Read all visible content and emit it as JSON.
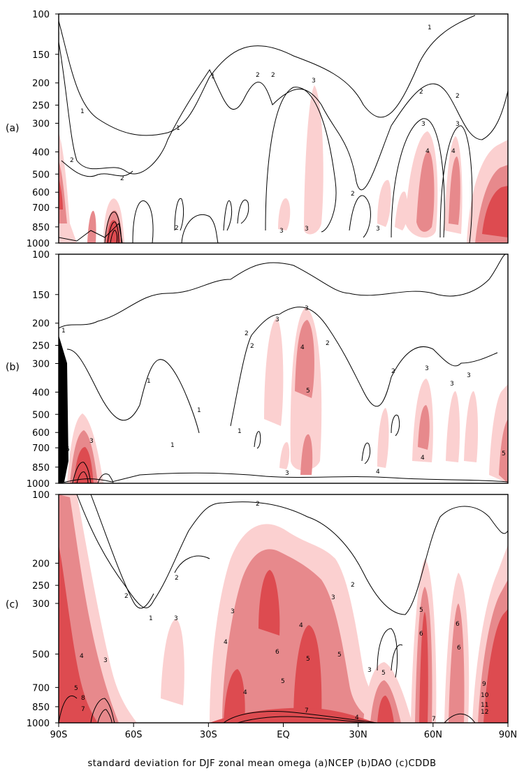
{
  "figure": {
    "caption": "standard deviation for DJF zonal mean omega (a)NCEP (b)DAO (c)CDDB"
  },
  "colors": {
    "level_1": "#fbd0d0",
    "level_2": "#e7898c",
    "level_3": "#dd4b50",
    "frame": "#000000"
  },
  "chart_data": [
    {
      "type": "contour",
      "panel_label": "(a)",
      "x_ticks": [],
      "ylabel": "",
      "y_ticks": [
        "100",
        "150",
        "200",
        "250",
        "300",
        "400",
        "500",
        "600",
        "700",
        "850",
        "1000"
      ],
      "xlim": [
        -90,
        90
      ],
      "ylim_hPa": [
        1000,
        100
      ],
      "contour_labels": [
        "1",
        "1",
        "1",
        "1",
        "2",
        "2",
        "2",
        "2",
        "2",
        "2",
        "2",
        "2",
        "3",
        "3",
        "3",
        "3",
        "3",
        "3",
        "4",
        "4"
      ],
      "shaded_regions": [
        {
          "lat": -88,
          "p": 450,
          "level": 2
        },
        {
          "lat": -62,
          "p": 850,
          "level": 3
        },
        {
          "lat": 7,
          "p": 400,
          "level": 1
        },
        {
          "lat": 55,
          "p": 550,
          "level": 2
        },
        {
          "lat": 70,
          "p": 600,
          "level": 2
        },
        {
          "lat": 86,
          "p": 650,
          "level": 3
        }
      ]
    },
    {
      "type": "contour",
      "panel_label": "(b)",
      "x_ticks": [],
      "ylabel": "",
      "y_ticks": [
        "100",
        "150",
        "200",
        "250",
        "300",
        "400",
        "500",
        "600",
        "700",
        "850",
        "1000"
      ],
      "xlim": [
        -90,
        90
      ],
      "ylim_hPa": [
        1000,
        100
      ],
      "contour_labels": [
        "1",
        "1",
        "1",
        "1",
        "1",
        "2",
        "2",
        "2",
        "2",
        "3",
        "3",
        "3",
        "3",
        "3",
        "3",
        "3",
        "4",
        "4",
        "4",
        "5",
        "5",
        "6"
      ],
      "shaded_regions": [
        {
          "lat": 6,
          "p": 350,
          "level": 2
        },
        {
          "lat": -89,
          "p": 500,
          "level": 3
        },
        {
          "lat": 50,
          "p": 550,
          "level": 2
        },
        {
          "lat": 88,
          "p": 600,
          "level": 3
        }
      ]
    },
    {
      "type": "contour",
      "panel_label": "(c)",
      "x_ticks": [
        "90S",
        "60S",
        "30S",
        "EQ",
        "30N",
        "60N",
        "90N"
      ],
      "ylabel": "",
      "y_ticks": [
        "100",
        "200",
        "250",
        "300",
        "500",
        "700",
        "850",
        "1000"
      ],
      "xlim": [
        -90,
        90
      ],
      "ylim_hPa": [
        1000,
        100
      ],
      "contour_labels": [
        "1",
        "2",
        "2",
        "2",
        "2",
        "3",
        "3",
        "3",
        "3",
        "3",
        "4",
        "4",
        "4",
        "4",
        "4",
        "5",
        "5",
        "5",
        "5",
        "5",
        "5",
        "6",
        "6",
        "6",
        "6",
        "7",
        "7",
        "7",
        "8",
        "9",
        "10",
        "11",
        "12"
      ],
      "shaded_regions": [
        {
          "lat": -85,
          "p": 600,
          "level": 3
        },
        {
          "lat": -5,
          "p": 450,
          "level": 3
        },
        {
          "lat": 15,
          "p": 700,
          "level": 3
        },
        {
          "lat": 58,
          "p": 550,
          "level": 3
        },
        {
          "lat": 80,
          "p": 600,
          "level": 3
        }
      ]
    }
  ]
}
